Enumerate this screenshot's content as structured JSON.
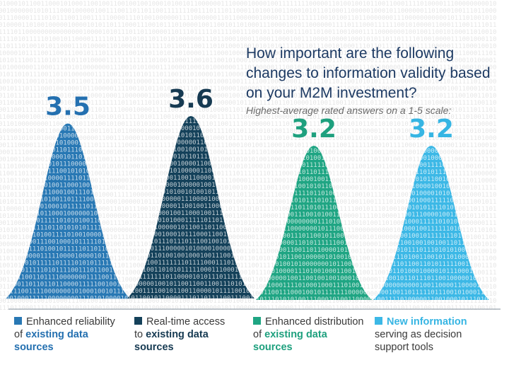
{
  "title": "How important are the following changes to information validity based on your M2M investment?",
  "subtitle": "Highest-average rated answers on a 1-5 scale:",
  "colors": {
    "c1": "#2878b4",
    "c2": "#14415a",
    "c3": "#1fa583",
    "c4": "#3cb8e6",
    "value1": "#2470b0",
    "value2": "#163a52",
    "value3": "#1ea07e",
    "value4": "#36b5e3"
  },
  "legend": [
    {
      "line1": "Enhanced reliability",
      "line2_plain": "of",
      "line2_bold": "existing data",
      "line3_bold": "sources"
    },
    {
      "line1": "Real-time access",
      "line2_plain": "to",
      "line2_bold": "existing data",
      "line3_bold": "sources"
    },
    {
      "line1": "Enhanced distribution",
      "line2_plain": "of",
      "line2_bold": "existing data",
      "line3_bold": "sources"
    },
    {
      "line1_bold": "New information",
      "line2_plain": "serving as decision",
      "line3_plain": "support tools"
    }
  ],
  "chart_data": {
    "type": "bar",
    "title": "How important are the following changes to information validity based on your M2M investment?",
    "subtitle": "Highest-average rated answers on a 1-5 scale:",
    "categories": [
      "Enhanced reliability of existing data sources",
      "Real-time access to existing data sources",
      "Enhanced distribution of existing data sources",
      "New information serving as decision support tools"
    ],
    "values": [
      3.5,
      3.6,
      3.2,
      3.2
    ],
    "value_labels": [
      "3.5",
      "3.6",
      "3.2",
      "3.2"
    ],
    "ylim": [
      1,
      5
    ]
  }
}
